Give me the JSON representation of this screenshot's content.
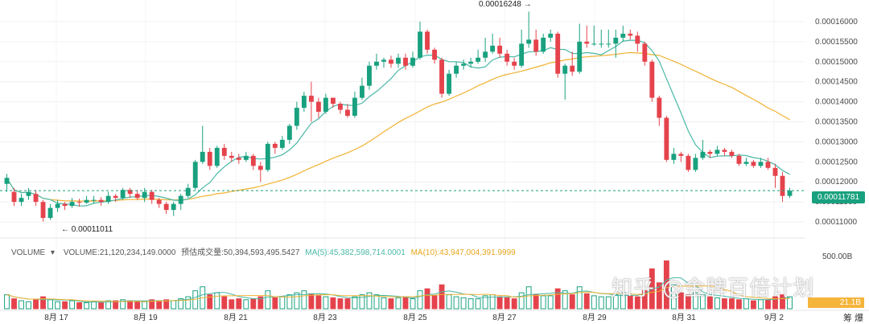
{
  "chart_data": {
    "type": "candlestick",
    "price_axis": {
      "ticks": [
        "0.00016000",
        "0.00015500",
        "0.00015000",
        "0.00014500",
        "0.00014000",
        "0.00013500",
        "0.00013000",
        "0.00012500",
        "0.00012000",
        "0.00011500",
        "0.00011000"
      ],
      "range": [
        0.000106,
        0.0001638
      ]
    },
    "date_axis": {
      "ticks": [
        "8月 17",
        "8月 19",
        "8月 21",
        "8月 23",
        "8月 25",
        "8月 27",
        "8月 29",
        "8月 31",
        "9月 2"
      ]
    },
    "current_price": "0.00011781",
    "high_annotation": "0.00016248",
    "low_annotation": "0.00011011",
    "volume_legend": {
      "title": "VOLUME",
      "volume": "VOLUME:21,120,234,149.0000",
      "estimated": "预估成交量:50,394,593,495.5427",
      "ma5": "MA(5):45,382,598,714.0001",
      "ma10": "MA(10):43,947,004,391.9999"
    },
    "volume_axis_max": "500.00B",
    "current_volume": "21.1B",
    "colors": {
      "up": "#19a17f",
      "down": "#e5434c",
      "ma_fast": "#48b8a6",
      "ma_slow": "#f1b232",
      "volume_up_fill": "#ffffff"
    },
    "candles": [
      [
        0.0001195,
        0.000121,
        0.0001175,
        0.000122
      ],
      [
        0.0001175,
        0.000115,
        0.000114,
        0.0001185
      ],
      [
        0.000115,
        0.000116,
        0.000114,
        0.000117
      ],
      [
        0.0001165,
        0.0001175,
        0.0001155,
        0.0001185
      ],
      [
        0.000117,
        0.000115,
        0.000114,
        0.000118
      ],
      [
        0.000115,
        0.000111,
        0.0001101,
        0.0001155
      ],
      [
        0.000111,
        0.0001135,
        0.0001105,
        0.0001145
      ],
      [
        0.0001135,
        0.0001145,
        0.0001125,
        0.0001155
      ],
      [
        0.0001145,
        0.000114,
        0.000113,
        0.000115
      ],
      [
        0.000114,
        0.000115,
        0.0001135,
        0.000116
      ],
      [
        0.000115,
        0.0001148,
        0.0001138,
        0.0001158
      ],
      [
        0.0001148,
        0.0001155,
        0.0001145,
        0.0001165
      ],
      [
        0.0001155,
        0.0001155,
        0.0001145,
        0.0001165
      ],
      [
        0.0001155,
        0.000115,
        0.000114,
        0.0001162
      ],
      [
        0.000115,
        0.0001165,
        0.0001145,
        0.0001175
      ],
      [
        0.0001165,
        0.000116,
        0.000115,
        0.000117
      ],
      [
        0.000116,
        0.000118,
        0.0001155,
        0.0001185
      ],
      [
        0.000118,
        0.000117,
        0.000116,
        0.0001185
      ],
      [
        0.000117,
        0.000116,
        0.0001155,
        0.000118
      ],
      [
        0.000116,
        0.0001175,
        0.000115,
        0.0001185
      ],
      [
        0.0001175,
        0.0001155,
        0.0001145,
        0.000118
      ],
      [
        0.0001155,
        0.0001145,
        0.0001135,
        0.000116
      ],
      [
        0.0001145,
        0.000113,
        0.000112,
        0.000115
      ],
      [
        0.000113,
        0.0001145,
        0.0001115,
        0.000115
      ],
      [
        0.0001145,
        0.0001165,
        0.000113,
        0.000117
      ],
      [
        0.0001165,
        0.0001185,
        0.000116,
        0.0001195
      ],
      [
        0.0001185,
        0.000125,
        0.000118,
        0.0001255
      ],
      [
        0.000125,
        0.0001275,
        0.0001245,
        0.000134
      ],
      [
        0.0001275,
        0.000124,
        0.000123,
        0.0001285
      ],
      [
        0.000124,
        0.0001285,
        0.0001235,
        0.000129
      ],
      [
        0.0001285,
        0.0001265,
        0.0001255,
        0.0001295
      ],
      [
        0.0001265,
        0.000126,
        0.000125,
        0.0001275
      ],
      [
        0.000126,
        0.0001255,
        0.0001245,
        0.000127
      ],
      [
        0.0001255,
        0.0001265,
        0.000125,
        0.0001275
      ],
      [
        0.0001265,
        0.000124,
        0.000123,
        0.000127
      ],
      [
        0.000124,
        0.000123,
        0.00012,
        0.000125
      ],
      [
        0.000123,
        0.0001295,
        0.0001225,
        0.00013
      ],
      [
        0.0001295,
        0.0001285,
        0.000127,
        0.00013
      ],
      [
        0.0001285,
        0.0001305,
        0.000128,
        0.0001315
      ],
      [
        0.0001305,
        0.000134,
        0.0001295,
        0.0001345
      ],
      [
        0.000134,
        0.0001385,
        0.000133,
        0.00014
      ],
      [
        0.0001385,
        0.0001415,
        0.0001375,
        0.0001425
      ],
      [
        0.0001415,
        0.00014,
        0.000135,
        0.000145
      ],
      [
        0.00014,
        0.0001375,
        0.000136,
        0.000141
      ],
      [
        0.0001375,
        0.000141,
        0.000137,
        0.000142
      ],
      [
        0.000141,
        0.0001395,
        0.0001385,
        0.000141
      ],
      [
        0.0001395,
        0.000138,
        0.000137,
        0.00014
      ],
      [
        0.000138,
        0.0001365,
        0.000136,
        0.0001395
      ],
      [
        0.0001365,
        0.000141,
        0.000136,
        0.0001425
      ],
      [
        0.000141,
        0.000144,
        0.0001405,
        0.000146
      ],
      [
        0.000144,
        0.000149,
        0.000143,
        0.00015
      ],
      [
        0.000149,
        0.00015,
        0.000148,
        0.000152
      ],
      [
        0.00015,
        0.0001505,
        0.0001485,
        0.000151
      ],
      [
        0.0001505,
        0.0001495,
        0.0001485,
        0.0001515
      ],
      [
        0.0001495,
        0.000151,
        0.0001485,
        0.000152
      ],
      [
        0.000151,
        0.000149,
        0.000148,
        0.000152
      ],
      [
        0.000149,
        0.000151,
        0.0001485,
        0.0001525
      ],
      [
        0.000151,
        0.0001575,
        0.0001505,
        0.00016
      ],
      [
        0.0001575,
        0.000153,
        0.000152,
        0.000158
      ],
      [
        0.000153,
        0.0001505,
        0.0001495,
        0.0001535
      ],
      [
        0.0001505,
        0.000142,
        0.000141,
        0.000151
      ],
      [
        0.000142,
        0.000147,
        0.0001415,
        0.000148
      ],
      [
        0.000147,
        0.000149,
        0.000146,
        0.00015
      ],
      [
        0.000149,
        0.0001495,
        0.000148,
        0.0001505
      ],
      [
        0.0001495,
        0.00015,
        0.0001485,
        0.000151
      ],
      [
        0.00015,
        0.000151,
        0.0001495,
        0.000153
      ],
      [
        0.000151,
        0.0001525,
        0.00015,
        0.000156
      ],
      [
        0.0001525,
        0.000154,
        0.000152,
        0.000157
      ],
      [
        0.000154,
        0.000152,
        0.000151,
        0.000156
      ],
      [
        0.000152,
        0.00015,
        0.000149,
        0.000153
      ],
      [
        0.00015,
        0.000149,
        0.000148,
        0.000151
      ],
      [
        0.000149,
        0.0001545,
        0.0001485,
        0.000158
      ],
      [
        0.0001545,
        0.0001555,
        0.0001535,
        0.0001625
      ],
      [
        0.0001555,
        0.0001525,
        0.0001515,
        0.000158
      ],
      [
        0.0001525,
        0.000156,
        0.000152,
        0.000157
      ],
      [
        0.000156,
        0.000157,
        0.000155,
        0.000158
      ],
      [
        0.000157,
        0.000147,
        0.000146,
        0.0001575
      ],
      [
        0.000147,
        0.000149,
        0.0001405,
        0.0001495
      ],
      [
        0.000149,
        0.0001475,
        0.0001465,
        0.0001525
      ],
      [
        0.0001475,
        0.000155,
        0.000147,
        0.0001595
      ],
      [
        0.000155,
        0.0001545,
        0.0001535,
        0.000159
      ],
      [
        0.0001545,
        0.0001545,
        0.000154,
        0.000159
      ],
      [
        0.0001545,
        0.0001545,
        0.0001535,
        0.000158
      ],
      [
        0.0001545,
        0.0001545,
        0.0001535,
        0.000158
      ],
      [
        0.0001545,
        0.000156,
        0.000151,
        0.000158
      ],
      [
        0.000156,
        0.000157,
        0.000155,
        0.000159
      ],
      [
        0.000157,
        0.0001565,
        0.0001555,
        0.000158
      ],
      [
        0.0001565,
        0.0001545,
        0.0001525,
        0.0001575
      ],
      [
        0.0001545,
        0.00015,
        0.000149,
        0.000155
      ],
      [
        0.00015,
        0.000141,
        0.00014,
        0.0001505
      ],
      [
        0.000141,
        0.000136,
        0.000134,
        0.0001415
      ],
      [
        0.000136,
        0.0001255,
        0.000125,
        0.0001365
      ],
      [
        0.0001255,
        0.000127,
        0.0001245,
        0.0001285
      ],
      [
        0.000127,
        0.0001265,
        0.000125,
        0.0001275
      ],
      [
        0.0001265,
        0.000123,
        0.0001225,
        0.000127
      ],
      [
        0.000123,
        0.000126,
        0.0001225,
        0.000127
      ],
      [
        0.000126,
        0.0001275,
        0.0001255,
        0.0001305
      ],
      [
        0.0001275,
        0.000127,
        0.000126,
        0.000128
      ],
      [
        0.000127,
        0.000128,
        0.0001265,
        0.000129
      ],
      [
        0.000128,
        0.0001275,
        0.0001265,
        0.0001285
      ],
      [
        0.0001275,
        0.0001265,
        0.000126,
        0.000128
      ],
      [
        0.0001265,
        0.0001245,
        0.000124,
        0.000127
      ],
      [
        0.0001245,
        0.000125,
        0.000124,
        0.000126
      ],
      [
        0.000125,
        0.000124,
        0.0001235,
        0.0001255
      ],
      [
        0.000124,
        0.000125,
        0.0001235,
        0.000126
      ],
      [
        0.000125,
        0.0001235,
        0.000123,
        0.000126
      ],
      [
        0.0001235,
        0.0001215,
        0.0001185,
        0.0001245
      ],
      [
        0.0001215,
        0.0001165,
        0.000115,
        0.0001225
      ],
      [
        0.0001165,
        0.0001178,
        0.000116,
        0.0001185
      ]
    ],
    "volumes": [
      14,
      10,
      8,
      7,
      9,
      12,
      9,
      7,
      7,
      8,
      6,
      6,
      7,
      6,
      8,
      8,
      9,
      8,
      7,
      7,
      9,
      8,
      9,
      8,
      10,
      12,
      18,
      22,
      14,
      16,
      12,
      9,
      10,
      9,
      10,
      12,
      18,
      11,
      12,
      14,
      16,
      18,
      15,
      13,
      12,
      11,
      10,
      10,
      12,
      14,
      16,
      14,
      11,
      10,
      11,
      12,
      10,
      18,
      20,
      13,
      24,
      14,
      12,
      11,
      10,
      10,
      13,
      14,
      12,
      11,
      10,
      16,
      22,
      14,
      13,
      13,
      20,
      18,
      14,
      22,
      15,
      13,
      12,
      12,
      14,
      16,
      13,
      12,
      18,
      40,
      26,
      48,
      24,
      16,
      14,
      16,
      14,
      12,
      11,
      10,
      10,
      9,
      10,
      8,
      9,
      9,
      12,
      14,
      12
    ]
  },
  "watermark": "知乎 @金牌百倍计划",
  "corner_label": "筹 爆"
}
